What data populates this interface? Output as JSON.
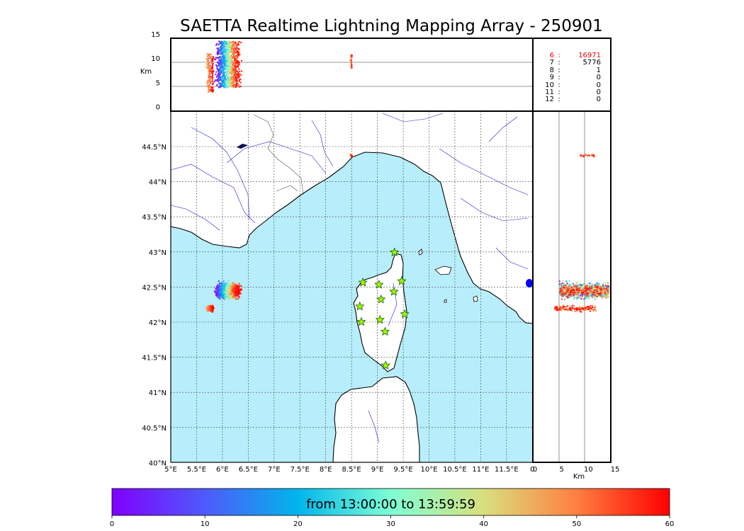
{
  "title": "SAETTA Realtime Lightning Mapping Array - 250901",
  "alt_axis_label": "Km",
  "alt_ticks": [
    "15",
    "10",
    "5",
    "0"
  ],
  "lon_ticks": [
    "5°E",
    "5.5°E",
    "6°E",
    "6.5°E",
    "7°E",
    "7.5°E",
    "8°E",
    "8.5°E",
    "9°E",
    "9.5°E",
    "10°E",
    "10.5°E",
    "11°E",
    "11.5°E",
    "0"
  ],
  "lat_ticks": [
    "44.5°N",
    "44°N",
    "43.5°N",
    "43°N",
    "42.5°N",
    "42°N",
    "41.5°N",
    "41°N",
    "40.5°N",
    "40°N"
  ],
  "km_ticks": [
    "0",
    "5",
    "10",
    "15"
  ],
  "km_label": "Km",
  "station_counts": [
    {
      "k": "6",
      "v": "16971",
      "highlight": true
    },
    {
      "k": "7",
      "v": "5776",
      "highlight": false
    },
    {
      "k": "8",
      "v": "1",
      "highlight": false
    },
    {
      "k": "9",
      "v": "0",
      "highlight": false
    },
    {
      "k": "10",
      "v": "0",
      "highlight": false
    },
    {
      "k": "11",
      "v": "0",
      "highlight": false
    },
    {
      "k": "12",
      "v": "0",
      "highlight": false
    }
  ],
  "colorbar": {
    "label": "from 13:00:00 to 13:59:59",
    "ticks": [
      "0",
      "10",
      "20",
      "30",
      "40",
      "50",
      "60"
    ],
    "min": 0,
    "max": 60,
    "colors": [
      "#7f00ff",
      "#4f5afc",
      "#00b5eb",
      "#7fffd4",
      "#d7e07e",
      "#ff7f40",
      "#ff0000"
    ]
  },
  "map_colors": {
    "sea": "#b8eefc",
    "land": "#ffffff",
    "rivers": "#2020e0",
    "borders": "#555555",
    "coast": "#000000",
    "highlight_count": "#ff0000"
  },
  "stations": [
    [
      9.33,
      42.99
    ],
    [
      8.72,
      42.56
    ],
    [
      9.03,
      42.53
    ],
    [
      9.47,
      42.58
    ],
    [
      9.32,
      42.43
    ],
    [
      9.07,
      42.32
    ],
    [
      8.66,
      42.22
    ],
    [
      9.53,
      42.11
    ],
    [
      8.69,
      42.0
    ],
    [
      9.05,
      42.03
    ],
    [
      9.15,
      41.86
    ],
    [
      9.16,
      41.38
    ]
  ],
  "cells": [
    {
      "lon": 6.1,
      "lat": 42.45,
      "lon_spread": 0.32,
      "lat_spread": 0.17,
      "n": 1100,
      "t_min": 0,
      "t_max": 60,
      "z_min": 5,
      "z_max": 14.5
    },
    {
      "lon": 5.75,
      "lat": 42.2,
      "lon_spread": 0.1,
      "lat_spread": 0.07,
      "n": 160,
      "t_min": 45,
      "t_max": 60,
      "z_min": 4,
      "z_max": 12
    },
    {
      "lon": 8.48,
      "lat": 44.38,
      "lon_spread": 0.03,
      "lat_spread": 0.03,
      "n": 22,
      "t_min": 45,
      "t_max": 60,
      "z_min": 9,
      "z_max": 12
    }
  ]
}
